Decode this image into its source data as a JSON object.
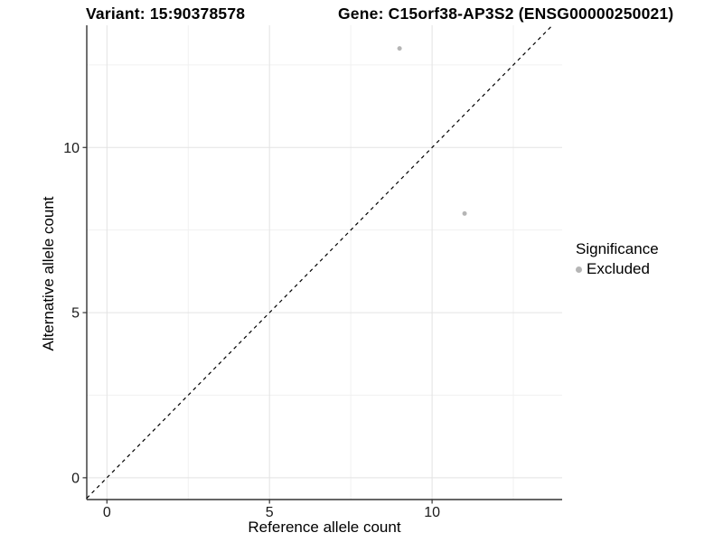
{
  "titles": {
    "variant": "Variant: 15:90378578",
    "gene": "Gene: C15orf38-AP3S2 (ENSG00000250021)"
  },
  "chart_data": {
    "type": "scatter",
    "xlabel": "Reference allele count",
    "ylabel": "Alternative allele count",
    "xlim": [
      -0.62,
      14.0
    ],
    "ylim": [
      -0.66,
      13.7
    ],
    "x_ticks": [
      0,
      5,
      10
    ],
    "y_ticks": [
      0,
      5,
      10
    ],
    "x_minor_ticks": [
      2.5,
      7.5,
      12.5
    ],
    "y_minor_ticks": [
      2.5,
      7.5,
      12.5
    ],
    "grid": "major and minor gridlines on, white background",
    "series": [
      {
        "name": "Excluded",
        "color": "#b5b5b5",
        "points": [
          {
            "x": 9,
            "y": 13
          },
          {
            "x": 11,
            "y": 8
          }
        ]
      }
    ],
    "reference_line": {
      "type": "identity y=x",
      "style": "dashed",
      "color": "#000000"
    },
    "legend": {
      "title": "Significance",
      "position": "right",
      "entries": [
        {
          "label": "Excluded",
          "color": "#b5b5b5"
        }
      ]
    }
  },
  "style_colors": {
    "major_grid": "#e3e3e3",
    "minor_grid": "#f1f1f1",
    "axis_line": "#333333",
    "tick_label": "#1a1a1a",
    "point": "#b5b5b5"
  }
}
